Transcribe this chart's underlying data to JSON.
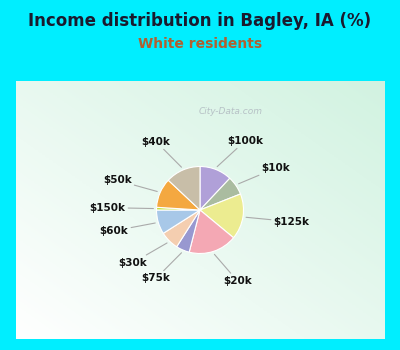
{
  "title": "Income distribution in Bagley, IA (%)",
  "subtitle": "White residents",
  "title_color": "#1a1a2e",
  "subtitle_color": "#b06030",
  "bg_cyan": "#00eeff",
  "bg_chart": "#d8ede0",
  "watermark": "City-Data.com",
  "labels": [
    "$100k",
    "$10k",
    "$125k",
    "$20k",
    "$75k",
    "$30k",
    "$60k",
    "$150k",
    "$50k",
    "$40k"
  ],
  "values": [
    12,
    7,
    17,
    18,
    5,
    7,
    9,
    1,
    11,
    13
  ],
  "colors": [
    "#b0a0d8",
    "#aabca0",
    "#ecec90",
    "#f4a8b4",
    "#9898d0",
    "#f4ceb0",
    "#a8c8e8",
    "#c8e040",
    "#f4a840",
    "#c8bea8"
  ],
  "label_fontsize": 7.5,
  "title_fontsize": 12,
  "subtitle_fontsize": 10,
  "startangle": 90
}
